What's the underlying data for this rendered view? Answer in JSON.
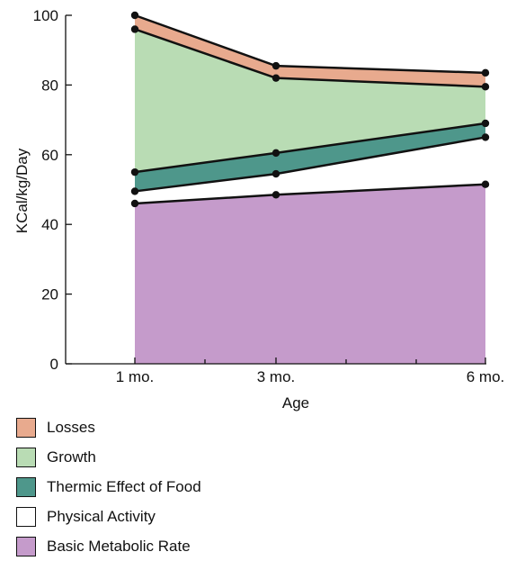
{
  "chart_data": {
    "type": "area",
    "stacked": true,
    "categories": [
      "1 mo.",
      "3 mo.",
      "6 mo."
    ],
    "xlabel": "Age",
    "ylabel": "KCal/kg/Day",
    "ylim": [
      0,
      100
    ],
    "yticks": [
      0,
      20,
      40,
      60,
      80,
      100
    ],
    "grid": false,
    "legend_position": "bottom-left",
    "series": [
      {
        "name": "Basic Metabolic Rate",
        "values": [
          46,
          48.5,
          51.5
        ],
        "color": "#c59bcb"
      },
      {
        "name": "Physical Activity",
        "values": [
          3.5,
          6,
          13.5
        ],
        "color": "#ffffff"
      },
      {
        "name": "Thermic Effect of Food",
        "values": [
          5.5,
          6,
          4
        ],
        "color": "#4e978b"
      },
      {
        "name": "Growth",
        "values": [
          41,
          21.5,
          10.5
        ],
        "color": "#b9dcb4"
      },
      {
        "name": "Losses",
        "values": [
          4,
          3.5,
          4
        ],
        "color": "#e8aa8e"
      }
    ],
    "legend_order": [
      "Losses",
      "Growth",
      "Thermic Effect of Food",
      "Physical Activity",
      "Basic Metabolic Rate"
    ]
  }
}
